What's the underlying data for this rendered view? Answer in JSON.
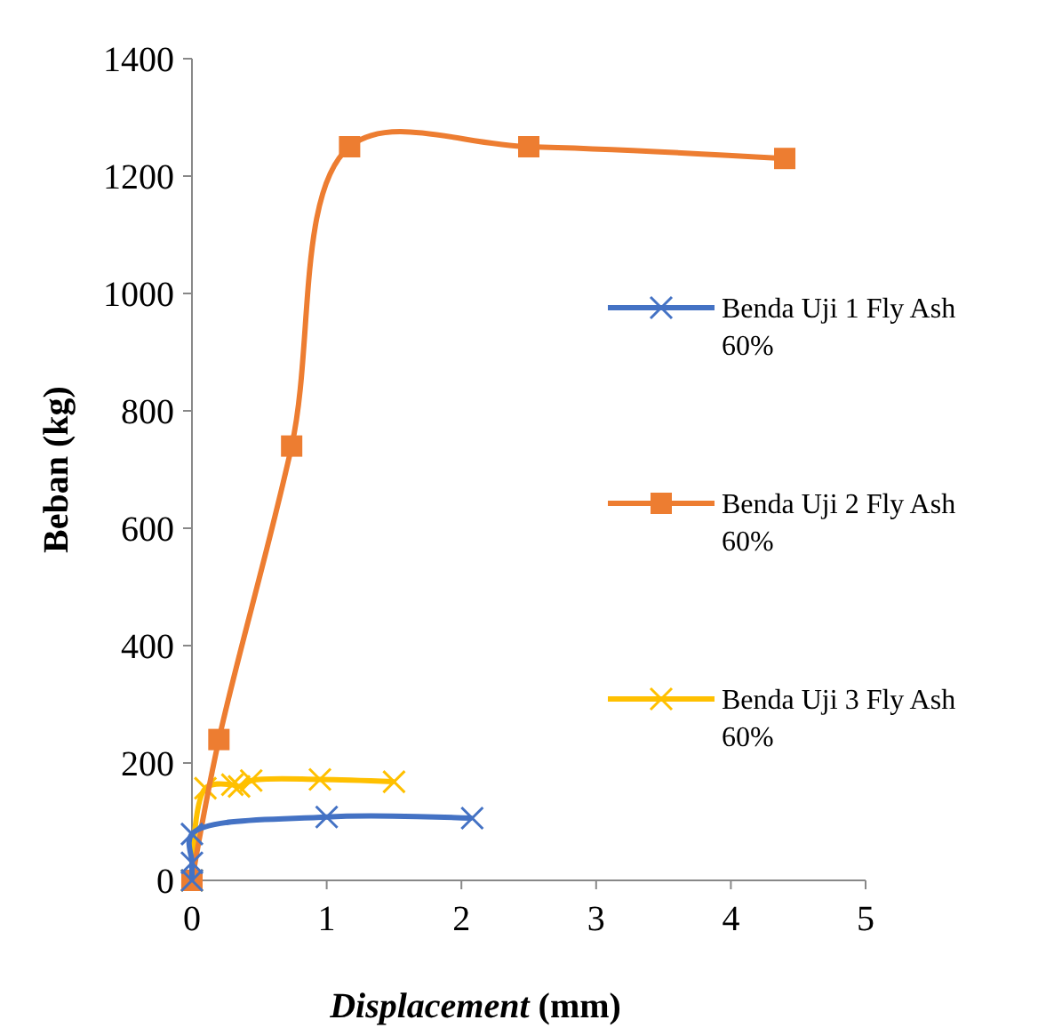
{
  "chart_data": {
    "type": "line",
    "xlabel": "Displacement (mm)",
    "ylabel": "Beban (kg)",
    "xlim": [
      0,
      5
    ],
    "xticks": [
      0,
      1,
      2,
      3,
      4,
      5
    ],
    "ylim": [
      0,
      1400
    ],
    "yticks": [
      0,
      200,
      400,
      600,
      800,
      1000,
      1200,
      1400
    ],
    "grid": false,
    "legend": "right",
    "series": [
      {
        "name": "Benda Uji 1 Fly Ash 60%",
        "color": "#4472c4",
        "marker": "cross",
        "x": [
          0,
          0,
          0,
          1,
          2.08
        ],
        "values": [
          0,
          30,
          79,
          108,
          106
        ]
      },
      {
        "name": "Benda Uji 2 Fly Ash 60%",
        "color": "#ed7d31",
        "marker": "square",
        "x": [
          0,
          0.2,
          0.74,
          1.17,
          2.5,
          4.4
        ],
        "values": [
          0,
          240,
          740,
          1250,
          1250,
          1230
        ]
      },
      {
        "name": "Benda Uji 3 Fly Ash 60%",
        "color": "#ffc000",
        "marker": "cross",
        "x": [
          0,
          0.1,
          0.3,
          0.35,
          0.44,
          0.95,
          1.5
        ],
        "values": [
          0,
          157,
          163,
          160,
          170,
          172,
          168
        ]
      }
    ]
  }
}
